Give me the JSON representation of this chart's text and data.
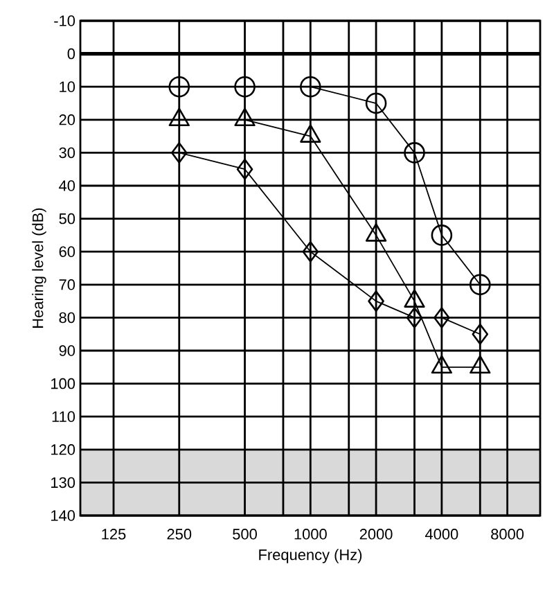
{
  "chart_data": {
    "type": "line",
    "xlabel": "Frequency (Hz)",
    "ylabel": "Hearing level (dB)",
    "xlim": [
      88,
      11314
    ],
    "ylim": [
      140,
      -10
    ],
    "xticks": [
      125,
      250,
      500,
      {
        "value": 750,
        "label": null
      },
      1000,
      {
        "value": 1500,
        "label": null
      },
      2000,
      {
        "value": 3000,
        "label": null
      },
      4000,
      {
        "value": 6000,
        "label": null
      },
      8000
    ],
    "yticks": [
      -10,
      0,
      10,
      20,
      30,
      40,
      50,
      60,
      70,
      80,
      90,
      100,
      110,
      120,
      130,
      140
    ],
    "log": "x",
    "grid": true,
    "x": [
      250,
      500,
      1000,
      2000,
      3000,
      4000,
      6000
    ],
    "series": [
      {
        "color": "#000000",
        "marker": "circle",
        "values": [
          10,
          10,
          10,
          15,
          30,
          55,
          70
        ]
      },
      {
        "color": "#000000",
        "marker": "triangle",
        "values": [
          20,
          20,
          25,
          55,
          75,
          95,
          95
        ]
      },
      {
        "color": "#000000",
        "marker": "diamond",
        "values": [
          30,
          35,
          60,
          75,
          80,
          80,
          85
        ]
      }
    ],
    "ref_lines": [
      {
        "axis": "y",
        "value": 0,
        "color": "#000000"
      }
    ],
    "bands": [
      {
        "axis": "y",
        "from": 120,
        "to": 140,
        "color": "#d9d9d9"
      }
    ]
  }
}
